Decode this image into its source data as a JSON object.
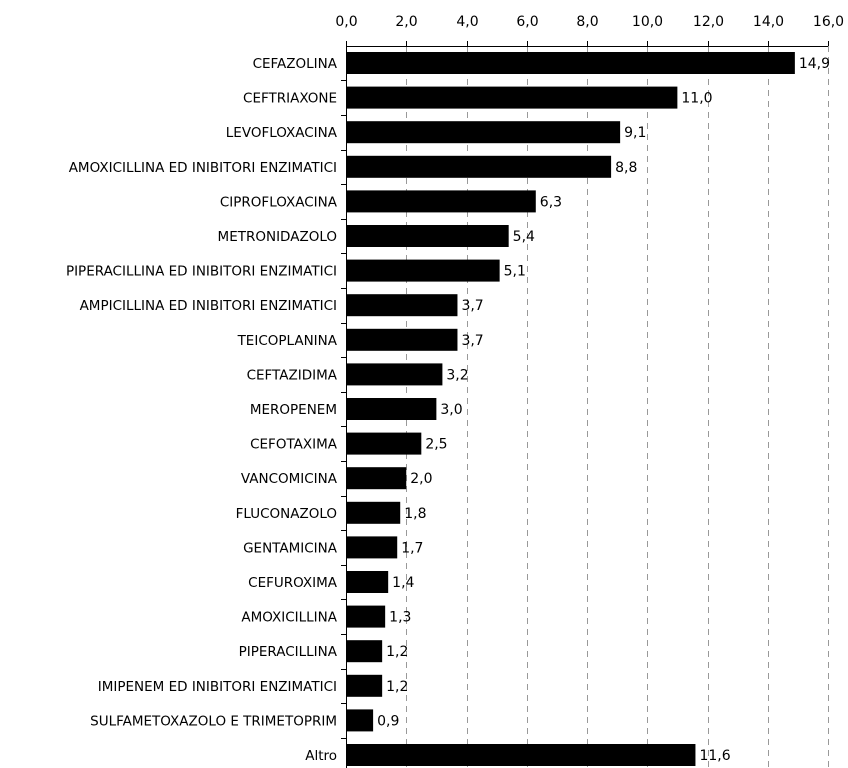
{
  "chart_data": {
    "type": "bar",
    "orientation": "horizontal",
    "categories": [
      "CEFAZOLINA",
      "CEFTRIAXONE",
      "LEVOFLOXACINA",
      "AMOXICILLINA ED INIBITORI ENZIMATICI",
      "CIPROFLOXACINA",
      "METRONIDAZOLO",
      "PIPERACILLINA ED INIBITORI ENZIMATICI",
      "AMPICILLINA ED INIBITORI ENZIMATICI",
      "TEICOPLANINA",
      "CEFTAZIDIMA",
      "MEROPENEM",
      "CEFOTAXIMA",
      "VANCOMICINA",
      "FLUCONAZOLO",
      "GENTAMICINA",
      "CEFUROXIMA",
      "AMOXICILLINA",
      "PIPERACILLINA",
      "IMIPENEM ED INIBITORI ENZIMATICI",
      "SULFAMETOXAZOLO E TRIMETOPRIM",
      "Altro"
    ],
    "values": [
      14.9,
      11.0,
      9.1,
      8.8,
      6.3,
      5.4,
      5.1,
      3.7,
      3.7,
      3.2,
      3.0,
      2.5,
      2.0,
      1.8,
      1.7,
      1.4,
      1.3,
      1.2,
      1.2,
      0.9,
      11.6
    ],
    "value_labels": [
      "14,9",
      "11,0",
      "9,1",
      "8,8",
      "6,3",
      "5,4",
      "5,1",
      "3,7",
      "3,7",
      "3,2",
      "3,0",
      "2,5",
      "2,0",
      "1,8",
      "1,7",
      "1,4",
      "1,3",
      "1,2",
      "1,2",
      "0,9",
      "11,6"
    ],
    "xlim": [
      0,
      16
    ],
    "x_ticks": [
      0,
      2,
      4,
      6,
      8,
      10,
      12,
      14,
      16
    ],
    "x_tick_labels": [
      "0,0",
      "2,0",
      "4,0",
      "6,0",
      "8,0",
      "10,0",
      "12,0",
      "14,0",
      "16,0"
    ],
    "x_axis_position": "top",
    "grid": "vertical dashed",
    "bar_color": "#000000",
    "grid_color": "#999999"
  }
}
